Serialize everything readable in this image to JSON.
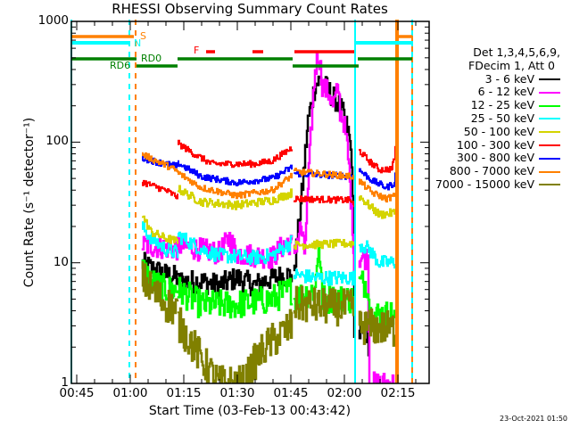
{
  "chart_data": {
    "type": "line",
    "title": "RHESSI Observing Summary Count Rates",
    "xlabel": "Start Time (03-Feb-13 00:43:42)",
    "ylabel": "Count Rate (s⁻¹ detector⁻¹)",
    "x_units": "minutes since 00:00 UT",
    "xlim": [
      43.5,
      143.75
    ],
    "ylim": [
      1,
      1000
    ],
    "yscale": "log",
    "x_ticks": [
      {
        "t": 45,
        "label": "00:45"
      },
      {
        "t": 60,
        "label": "01:00"
      },
      {
        "t": 75,
        "label": "01:15"
      },
      {
        "t": 90,
        "label": "01:30"
      },
      {
        "t": 105,
        "label": "01:45"
      },
      {
        "t": 120,
        "label": "02:00"
      },
      {
        "t": 135,
        "label": "02:15"
      }
    ],
    "y_ticks": [
      {
        "v": 1,
        "label": "1"
      },
      {
        "v": 10,
        "label": "10"
      },
      {
        "v": 100,
        "label": "100"
      },
      {
        "v": 1000,
        "label": "1000"
      }
    ],
    "legend": {
      "placement": "right",
      "header1": "Det 1,3,4,5,6,9,",
      "header2": "FDecim 1, Att 0"
    },
    "series": [
      {
        "name": "3 - 6 keV",
        "color": "#000000",
        "noise": 0.22,
        "segments": [
          [
            [
              63.5,
              10
            ],
            [
              66,
              9
            ],
            [
              70,
              8
            ],
            [
              73.5,
              7.5
            ]
          ],
          [
            [
              73.5,
              7
            ],
            [
              80,
              7
            ],
            [
              85,
              6.5
            ],
            [
              90,
              7.5
            ],
            [
              95,
              6.5
            ],
            [
              100,
              7.5
            ],
            [
              105.5,
              8
            ]
          ],
          [
            [
              106,
              8
            ],
            [
              108,
              30
            ],
            [
              110,
              150
            ],
            [
              112,
              300
            ],
            [
              113.5,
              330
            ],
            [
              116,
              260
            ],
            [
              118.5,
              210
            ],
            [
              120.25,
              157
            ],
            [
              121.5,
              110
            ],
            [
              122.25,
              74
            ],
            [
              122.75,
              12
            ],
            [
              123,
              3
            ]
          ],
          [
            [
              124.25,
              2.6
            ],
            [
              126.75,
              2.6
            ],
            [
              127,
              1.5
            ]
          ]
        ]
      },
      {
        "name": "6 - 12 keV",
        "color": "#ff00ff",
        "noise": 0.22,
        "segments": [
          [
            [
              63.5,
              14
            ],
            [
              73.5,
              13
            ]
          ],
          [
            [
              73.5,
              14
            ],
            [
              85,
              12
            ],
            [
              88,
              16
            ],
            [
              90,
              12
            ],
            [
              100,
              11
            ],
            [
              104,
              15
            ],
            [
              105.5,
              14
            ]
          ],
          [
            [
              106,
              12
            ],
            [
              108,
              20
            ],
            [
              109,
              12
            ],
            [
              110,
              40
            ],
            [
              111,
              150
            ],
            [
              112,
              400
            ],
            [
              113,
              550
            ],
            [
              114,
              300
            ],
            [
              115,
              270
            ],
            [
              116,
              250
            ],
            [
              117,
              200
            ],
            [
              118.5,
              280
            ],
            [
              119,
              180
            ],
            [
              120,
              150
            ],
            [
              121,
              90
            ],
            [
              121.5,
              60
            ],
            [
              122.75,
              15
            ],
            [
              123,
              8
            ]
          ],
          [
            [
              124.25,
              11
            ],
            [
              126.75,
              11
            ],
            [
              127.25,
              1
            ],
            [
              134.25,
              1
            ]
          ]
        ]
      },
      {
        "name": "12 - 25 keV",
        "color": "#00ff00",
        "noise": 0.28,
        "segments": [
          [
            [
              63.5,
              9
            ],
            [
              66,
              7
            ],
            [
              70,
              6
            ],
            [
              73.5,
              6
            ]
          ],
          [
            [
              73.5,
              6
            ],
            [
              80,
              4.5
            ],
            [
              90,
              4.5
            ],
            [
              100,
              5
            ],
            [
              105.5,
              6
            ]
          ],
          [
            [
              106,
              5
            ],
            [
              112,
              6
            ],
            [
              113,
              15
            ],
            [
              114,
              5
            ],
            [
              122.75,
              5
            ]
          ],
          [
            [
              124.25,
              6.8
            ],
            [
              126.75,
              6.8
            ],
            [
              127.25,
              3.7
            ],
            [
              134.25,
              3.7
            ]
          ]
        ]
      },
      {
        "name": "25 - 50 keV",
        "color": "#00ffff",
        "noise": 0.14,
        "segments": [
          [
            [
              63.5,
              20
            ],
            [
              66,
              16
            ],
            [
              70,
              13
            ],
            [
              73.5,
              12
            ]
          ],
          [
            [
              73.5,
              17
            ],
            [
              80,
              13
            ],
            [
              85,
              11.5
            ],
            [
              95,
              11
            ],
            [
              100,
              11.5
            ],
            [
              105.5,
              15
            ]
          ],
          [
            [
              106,
              8
            ],
            [
              112,
              7.5
            ],
            [
              122.75,
              7.5
            ]
          ],
          [
            [
              124.25,
              14.5
            ],
            [
              127,
              13
            ],
            [
              130,
              10
            ],
            [
              134.25,
              10
            ]
          ]
        ]
      },
      {
        "name": "50 - 100 keV",
        "color": "#d4d400",
        "noise": 0.08,
        "segments": [
          [
            [
              63.5,
              25
            ],
            [
              66,
              18
            ],
            [
              70,
              16
            ],
            [
              73.5,
              15
            ]
          ],
          [
            [
              73.5,
              41
            ],
            [
              80,
              32
            ],
            [
              90,
              30
            ],
            [
              100,
              33
            ],
            [
              105.5,
              38
            ]
          ],
          [
            [
              106,
              14
            ],
            [
              122.75,
              14.5
            ]
          ],
          [
            [
              124.25,
              36
            ],
            [
              127,
              30
            ],
            [
              130,
              25
            ],
            [
              134.25,
              26
            ]
          ]
        ]
      },
      {
        "name": "100 - 300 keV",
        "color": "#ff0000",
        "noise": 0.06,
        "segments": [
          [
            [
              63.5,
              47
            ],
            [
              66,
              44
            ],
            [
              70,
              40
            ],
            [
              73.5,
              35
            ]
          ],
          [
            [
              73.5,
              98
            ],
            [
              78,
              80
            ],
            [
              83,
              66
            ],
            [
              95,
              66
            ],
            [
              100,
              70
            ],
            [
              105.5,
              90
            ]
          ],
          [
            [
              106,
              34
            ],
            [
              122,
              33
            ],
            [
              123,
              29
            ]
          ],
          [
            [
              124.25,
              86
            ],
            [
              127,
              70
            ],
            [
              130,
              59
            ],
            [
              133.5,
              60
            ],
            [
              134.25,
              75
            ],
            [
              135,
              125
            ]
          ]
        ]
      },
      {
        "name": "300 - 800 keV",
        "color": "#0000ff",
        "noise": 0.06,
        "segments": [
          [
            [
              63.5,
              74
            ],
            [
              68,
              68
            ],
            [
              73.5,
              63
            ]
          ],
          [
            [
              73.5,
              67
            ],
            [
              80,
              52
            ],
            [
              90,
              46
            ],
            [
              100,
              50
            ],
            [
              105.5,
              62
            ]
          ],
          [
            [
              106,
              55
            ],
            [
              122.75,
              52
            ]
          ],
          [
            [
              124.25,
              59
            ],
            [
              128,
              48
            ],
            [
              132,
              42
            ],
            [
              134.25,
              46
            ],
            [
              135,
              70
            ]
          ]
        ]
      },
      {
        "name": "800 - 7000 keV",
        "color": "#ff8000",
        "noise": 0.06,
        "segments": [
          [
            [
              63.5,
              80
            ],
            [
              66,
              73
            ],
            [
              70,
              65
            ],
            [
              73.5,
              57
            ]
          ],
          [
            [
              73.5,
              56
            ],
            [
              80,
              42
            ],
            [
              90,
              36
            ],
            [
              100,
              40
            ],
            [
              105.5,
              53
            ]
          ],
          [
            [
              106,
              57
            ],
            [
              122.75,
              52
            ]
          ],
          [
            [
              124.25,
              48
            ],
            [
              128,
              38
            ],
            [
              132,
              34
            ],
            [
              134.25,
              36
            ]
          ]
        ]
      },
      {
        "name": "7000 - 15000 keV",
        "color": "#808000",
        "noise": 0.35,
        "segments": [
          [
            [
              63.5,
              7.5
            ],
            [
              66,
              6
            ],
            [
              70,
              4.6
            ],
            [
              73.5,
              4
            ]
          ],
          [
            [
              73.5,
              3.2
            ],
            [
              76,
              2.5
            ],
            [
              79,
              1.8
            ],
            [
              82,
              1.3
            ],
            [
              85,
              1
            ],
            [
              92,
              1
            ],
            [
              95,
              1.5
            ],
            [
              98,
              2
            ],
            [
              102,
              2.5
            ],
            [
              105.5,
              3
            ]
          ],
          [
            [
              106,
              4.5
            ],
            [
              122.75,
              4.2
            ]
          ],
          [
            [
              124.25,
              3
            ],
            [
              134.25,
              2.8
            ]
          ]
        ]
      }
    ],
    "flags": [
      {
        "name": "S",
        "label": "S",
        "color": "#ff8000",
        "intervals": [
          [
            43.5,
            61.0
          ],
          [
            134.5,
            139
          ]
        ]
      },
      {
        "name": "N",
        "label": "N",
        "color": "#00ffff",
        "intervals": [
          [
            43.5,
            59.75
          ],
          [
            123,
            139
          ]
        ]
      },
      {
        "name": "F",
        "label": "F",
        "color": "#ff0000",
        "intervals": [
          [
            81.25,
            83.75
          ],
          [
            94.25,
            97.25
          ],
          [
            106,
            122.75
          ]
        ]
      },
      {
        "name": "RD0",
        "label": "RD0",
        "color": "#008000",
        "intervals": [
          [
            43.5,
            61.75
          ],
          [
            73.25,
            105.5
          ],
          [
            123.75,
            139
          ]
        ]
      },
      {
        "name": "RD6",
        "label": "RD6",
        "color": "#008000",
        "intervals": [
          [
            61.75,
            73.25
          ],
          [
            105.5,
            124
          ]
        ]
      }
    ],
    "vlines": [
      {
        "t": 43.5,
        "color": "#00ffff",
        "style": "solid"
      },
      {
        "t": 59.75,
        "color": "#00ffff",
        "style": "dashed"
      },
      {
        "t": 61.5,
        "color": "#ff8000",
        "style": "dashed"
      },
      {
        "t": 123,
        "color": "#00ffff",
        "style": "solid"
      },
      {
        "t": 134.5,
        "color": "#ff8000",
        "style": "solid"
      },
      {
        "t": 135,
        "color": "#ff8000",
        "style": "solid"
      },
      {
        "t": 139,
        "color": "#00ffff",
        "style": "dashed"
      },
      {
        "t": 139,
        "color": "#ff8000",
        "style": "dashed-offset"
      }
    ]
  },
  "timestamp": "23-Oct-2021 01:50"
}
